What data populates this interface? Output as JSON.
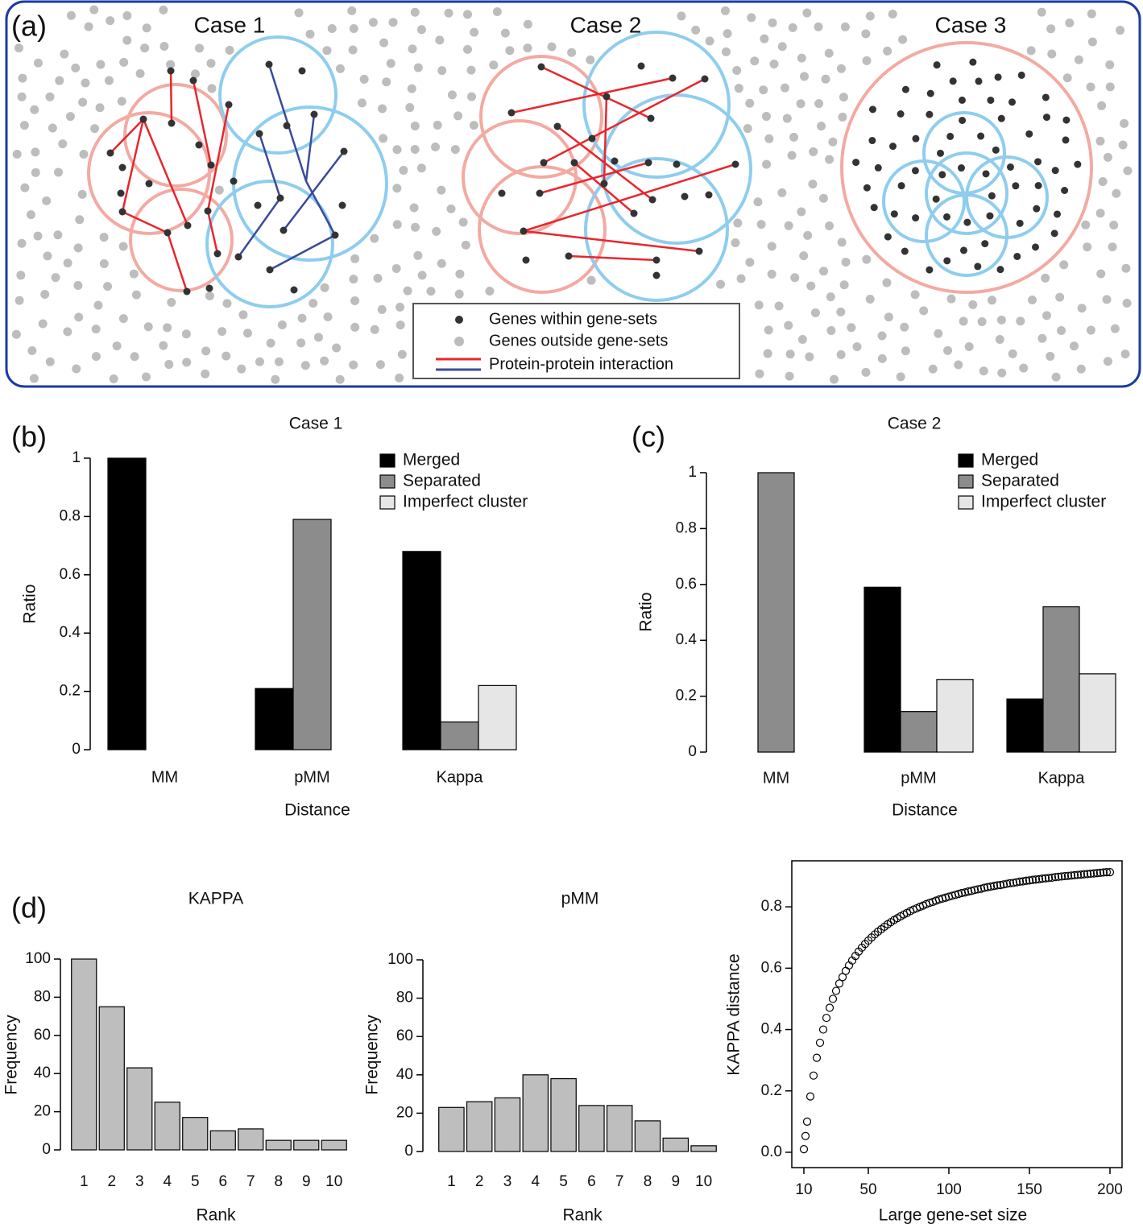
{
  "panel_a": {
    "label": "(a)",
    "cases": [
      "Case 1",
      "Case 2",
      "Case 3"
    ],
    "legend": [
      "Genes within gene-sets",
      "Genes outside gene-sets",
      "Protein-protein interaction"
    ]
  },
  "chart_data": [
    {
      "type": "bar",
      "panel_label": "(b)",
      "title": "Case 1",
      "categories": [
        "MM",
        "pMM",
        "Kappa"
      ],
      "series": [
        {
          "name": "Merged",
          "color": "#000000",
          "values": [
            1,
            0.21,
            0.68
          ]
        },
        {
          "name": "Separated",
          "color": "#8c8c8c",
          "values": [
            0,
            0.79,
            0.095
          ]
        },
        {
          "name": "Imperfect cluster",
          "color": "#e6e6e6",
          "values": [
            0,
            0,
            0.22
          ]
        }
      ],
      "ylim": [
        0,
        1
      ],
      "yticks": [
        0,
        0.2,
        0.4,
        0.6,
        0.8,
        1
      ],
      "xlabel": "Distance",
      "ylabel": "Ratio",
      "legend": "upper right"
    },
    {
      "type": "bar",
      "panel_label": "(c)",
      "title": "Case 2",
      "categories": [
        "MM",
        "pMM",
        "Kappa"
      ],
      "series": [
        {
          "name": "Merged",
          "color": "#000000",
          "values": [
            0,
            0.59,
            0.19
          ]
        },
        {
          "name": "Separated",
          "color": "#8c8c8c",
          "values": [
            1,
            0.145,
            0.52
          ]
        },
        {
          "name": "Imperfect cluster",
          "color": "#e6e6e6",
          "values": [
            0,
            0.26,
            0.28
          ]
        }
      ],
      "ylim": [
        0,
        1
      ],
      "yticks": [
        0,
        0.2,
        0.4,
        0.6,
        0.8,
        1
      ],
      "xlabel": "Distance",
      "ylabel": "Ratio",
      "legend": "upper right"
    },
    {
      "type": "bar",
      "panel_label": "(d)",
      "title": "KAPPA",
      "categories": [
        "1",
        "2",
        "3",
        "4",
        "5",
        "6",
        "7",
        "8",
        "9",
        "10"
      ],
      "values": [
        100,
        75,
        43,
        25,
        17,
        10,
        11,
        5,
        5,
        5
      ],
      "color": "#bebebe",
      "ylim": [
        0,
        100
      ],
      "yticks": [
        0,
        20,
        40,
        60,
        80,
        100
      ],
      "xlabel": "Rank",
      "ylabel": "Frequency"
    },
    {
      "type": "bar",
      "title": "pMM",
      "categories": [
        "1",
        "2",
        "3",
        "4",
        "5",
        "6",
        "7",
        "8",
        "9",
        "10"
      ],
      "values": [
        23,
        26,
        28,
        40,
        38,
        24,
        24,
        16,
        7,
        3
      ],
      "color": "#bebebe",
      "ylim": [
        0,
        100
      ],
      "yticks": [
        0,
        20,
        40,
        60,
        80,
        100
      ],
      "xlabel": "Rank",
      "ylabel": "Frequency"
    },
    {
      "type": "scatter",
      "xlabel": "Large gene-set size",
      "ylabel": "KAPPA distance",
      "x": [
        10,
        11,
        12,
        14,
        16,
        18,
        20,
        22,
        24,
        26,
        28,
        30,
        32,
        34,
        36,
        38,
        40,
        42,
        44,
        46,
        48,
        50,
        52,
        54,
        56,
        58,
        60,
        62,
        64,
        66,
        68,
        70,
        72,
        74,
        76,
        78,
        80,
        82,
        84,
        86,
        88,
        90,
        92,
        94,
        96,
        98,
        100,
        102,
        104,
        106,
        108,
        110,
        112,
        114,
        116,
        118,
        120,
        122,
        124,
        126,
        128,
        130,
        132,
        134,
        136,
        138,
        140,
        142,
        144,
        146,
        148,
        150,
        152,
        154,
        156,
        158,
        160,
        162,
        164,
        166,
        168,
        170,
        172,
        174,
        176,
        178,
        180,
        182,
        184,
        186,
        188,
        190,
        192,
        194,
        196,
        198,
        200
      ],
      "values": [
        0.01,
        0.053,
        0.1,
        0.182,
        0.25,
        0.308,
        0.357,
        0.4,
        0.438,
        0.471,
        0.5,
        0.526,
        0.55,
        0.571,
        0.591,
        0.609,
        0.625,
        0.64,
        0.654,
        0.667,
        0.679,
        0.69,
        0.7,
        0.71,
        0.719,
        0.727,
        0.735,
        0.743,
        0.75,
        0.757,
        0.763,
        0.769,
        0.775,
        0.78,
        0.786,
        0.791,
        0.795,
        0.8,
        0.804,
        0.809,
        0.813,
        0.816,
        0.82,
        0.824,
        0.827,
        0.83,
        0.833,
        0.836,
        0.839,
        0.842,
        0.845,
        0.847,
        0.85,
        0.852,
        0.855,
        0.857,
        0.859,
        0.862,
        0.864,
        0.866,
        0.868,
        0.87,
        0.871,
        0.873,
        0.875,
        0.877,
        0.878,
        0.88,
        0.882,
        0.883,
        0.885,
        0.886,
        0.888,
        0.889,
        0.89,
        0.892,
        0.893,
        0.894,
        0.895,
        0.897,
        0.898,
        0.899,
        0.9,
        0.901,
        0.902,
        0.903,
        0.904,
        0.905,
        0.906,
        0.907,
        0.908,
        0.909,
        0.91,
        0.911,
        0.912,
        0.913,
        0.913
      ],
      "xlim": [
        2.5,
        207.5
      ],
      "ylim": [
        -0.05,
        0.95
      ],
      "xticks": [
        10,
        50,
        100,
        150,
        200
      ],
      "yticks": [
        {
          "value": 0,
          "label": "0.0"
        },
        0.2,
        0.4,
        0.6,
        0.8
      ]
    }
  ]
}
